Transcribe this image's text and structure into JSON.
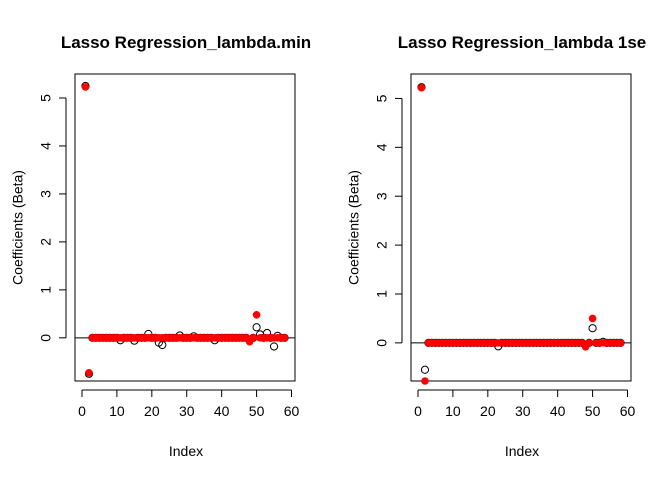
{
  "chart_data": [
    {
      "type": "scatter",
      "title": "Lasso Regression_lambda.min",
      "xlabel": "Index",
      "ylabel": "Coefficients (Beta)",
      "xlim": [
        -2,
        61
      ],
      "ylim": [
        -0.9,
        5.5
      ],
      "xticks": [
        "0",
        "10",
        "20",
        "30",
        "40",
        "50",
        "60"
      ],
      "yticks": [
        "0",
        "1",
        "2",
        "3",
        "4",
        "5"
      ],
      "hline": 0,
      "grid": false,
      "series": [
        {
          "marker": "open-circle",
          "color": "#000000",
          "x": [
            1,
            2,
            3,
            4,
            5,
            6,
            7,
            8,
            9,
            10,
            11,
            12,
            13,
            14,
            15,
            16,
            17,
            18,
            19,
            20,
            21,
            22,
            23,
            24,
            25,
            26,
            27,
            28,
            29,
            30,
            31,
            32,
            33,
            34,
            35,
            36,
            37,
            38,
            39,
            40,
            41,
            42,
            43,
            44,
            45,
            46,
            47,
            48,
            49,
            50,
            51,
            52,
            53,
            54,
            55,
            56,
            57,
            58
          ],
          "y": [
            5.25,
            -0.75,
            0,
            0,
            0,
            0,
            0,
            0,
            0,
            0,
            -0.05,
            0,
            0,
            0,
            -0.06,
            0,
            0,
            0,
            0.08,
            0,
            0,
            -0.1,
            -0.15,
            0,
            0,
            0,
            0,
            0.05,
            0,
            0,
            0,
            0.03,
            0,
            0,
            0,
            0,
            0,
            -0.05,
            0,
            0,
            0,
            0,
            0,
            0,
            0,
            0,
            0,
            -0.05,
            0,
            0.22,
            0.07,
            0,
            0.1,
            0,
            -0.18,
            0.04,
            0,
            0
          ]
        },
        {
          "marker": "filled-circle",
          "color": "#ff0000",
          "x": [
            1,
            2,
            3,
            4,
            5,
            6,
            7,
            8,
            9,
            10,
            11,
            12,
            13,
            14,
            15,
            16,
            17,
            18,
            19,
            20,
            21,
            22,
            23,
            24,
            25,
            26,
            27,
            28,
            29,
            30,
            31,
            32,
            33,
            34,
            35,
            36,
            37,
            38,
            39,
            40,
            41,
            42,
            43,
            44,
            45,
            46,
            47,
            48,
            49,
            50,
            51,
            52,
            53,
            54,
            55,
            56,
            57,
            58
          ],
          "y": [
            5.23,
            -0.73,
            0,
            0,
            0,
            0,
            0,
            0,
            0,
            0,
            0,
            0,
            0,
            0,
            0,
            0,
            0,
            0,
            0,
            0,
            0,
            0,
            0,
            0,
            0,
            0,
            0,
            0,
            0,
            0,
            0,
            0,
            0,
            0,
            0,
            0,
            0,
            0,
            0,
            0,
            0,
            0,
            0,
            0,
            0,
            0,
            0,
            -0.08,
            0,
            0.48,
            0,
            0,
            0,
            0,
            0,
            0,
            0,
            0
          ]
        }
      ]
    },
    {
      "type": "scatter",
      "title": "Lasso Regression_lambda 1se",
      "xlabel": "Index",
      "ylabel": "Coefficients (Beta)",
      "xlim": [
        -2,
        61
      ],
      "ylim": [
        -0.78,
        5.5
      ],
      "xticks": [
        "0",
        "10",
        "20",
        "30",
        "40",
        "50",
        "60"
      ],
      "yticks": [
        "0",
        "1",
        "2",
        "3",
        "4",
        "5"
      ],
      "hline": 0,
      "grid": false,
      "series": [
        {
          "marker": "open-circle",
          "color": "#000000",
          "x": [
            1,
            2,
            3,
            4,
            5,
            6,
            7,
            8,
            9,
            10,
            11,
            12,
            13,
            14,
            15,
            16,
            17,
            18,
            19,
            20,
            21,
            22,
            23,
            24,
            25,
            26,
            27,
            28,
            29,
            30,
            31,
            32,
            33,
            34,
            35,
            36,
            37,
            38,
            39,
            40,
            41,
            42,
            43,
            44,
            45,
            46,
            47,
            48,
            49,
            50,
            51,
            52,
            53,
            54,
            55,
            56,
            57,
            58
          ],
          "y": [
            5.23,
            -0.55,
            0,
            0,
            0,
            0,
            0,
            0,
            0,
            0,
            0,
            0,
            0,
            0,
            0,
            0,
            0,
            0,
            0,
            0,
            0,
            0,
            -0.07,
            0,
            0,
            0,
            0,
            0,
            0,
            0,
            0,
            0,
            0,
            0,
            0,
            0,
            0,
            0,
            0,
            0,
            0,
            0,
            0,
            0,
            0,
            0,
            0,
            -0.05,
            0,
            0.3,
            0,
            0,
            0.02,
            0,
            0,
            0,
            0,
            0
          ]
        },
        {
          "marker": "filled-circle",
          "color": "#ff0000",
          "x": [
            1,
            2,
            3,
            4,
            5,
            6,
            7,
            8,
            9,
            10,
            11,
            12,
            13,
            14,
            15,
            16,
            17,
            18,
            19,
            20,
            21,
            22,
            23,
            24,
            25,
            26,
            27,
            28,
            29,
            30,
            31,
            32,
            33,
            34,
            35,
            36,
            37,
            38,
            39,
            40,
            41,
            42,
            43,
            44,
            45,
            46,
            47,
            48,
            49,
            50,
            51,
            52,
            53,
            54,
            55,
            56,
            57,
            58
          ],
          "y": [
            5.22,
            -0.78,
            0,
            0,
            0,
            0,
            0,
            0,
            0,
            0,
            0,
            0,
            0,
            0,
            0,
            0,
            0,
            0,
            0,
            0,
            0,
            0,
            0,
            0,
            0,
            0,
            0,
            0,
            0,
            0,
            0,
            0,
            0,
            0,
            0,
            0,
            0,
            0,
            0,
            0,
            0,
            0,
            0,
            0,
            0,
            0,
            0,
            -0.08,
            0,
            0.5,
            0,
            0,
            0,
            0,
            0,
            0,
            0,
            0
          ]
        }
      ]
    }
  ]
}
